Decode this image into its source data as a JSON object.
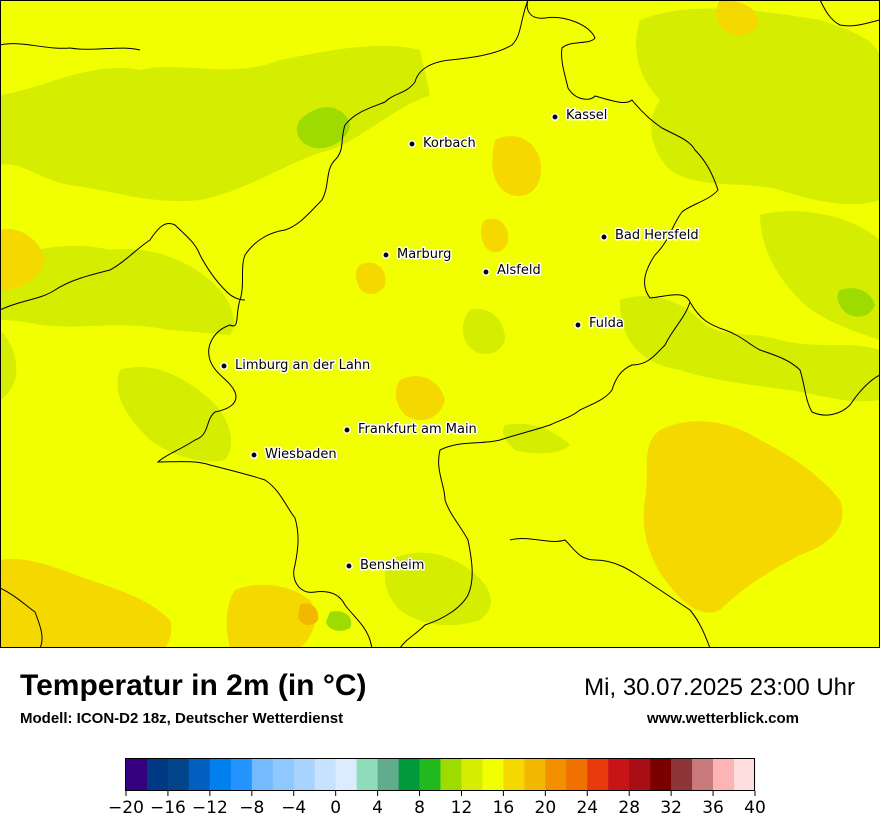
{
  "header": {
    "title": "Temperatur in 2m (in °C)",
    "model": "Modell: ICON-D2 18z, Deutscher Wetterdienst",
    "datetime": "Mi, 30.07.2025 23:00 Uhr",
    "website": "www.wetterblick.com"
  },
  "map": {
    "background_color": "#f2ff00",
    "cities": [
      {
        "name": "Kassel"
      },
      {
        "name": "Korbach"
      },
      {
        "name": "Bad Hersfeld"
      },
      {
        "name": "Marburg"
      },
      {
        "name": "Alsfeld"
      },
      {
        "name": "Fulda"
      },
      {
        "name": "Limburg an der Lahn"
      },
      {
        "name": "Frankfurt am Main"
      },
      {
        "name": "Wiesbaden"
      },
      {
        "name": "Bensheim"
      }
    ]
  },
  "legend": {
    "min": -20,
    "max": 40,
    "step": 2,
    "tick_labels": [
      "−20",
      "−16",
      "−12",
      "−8",
      "−4",
      "0",
      "4",
      "8",
      "12",
      "16",
      "20",
      "24",
      "28",
      "32",
      "36",
      "40"
    ],
    "colors": [
      "#35007f",
      "#003a87",
      "#00458a",
      "#005fbf",
      "#007fef",
      "#2494ff",
      "#74baff",
      "#8fc7ff",
      "#a9d3ff",
      "#c6e2ff",
      "#dcecff",
      "#8fdcba",
      "#62ab8c",
      "#009a3d",
      "#22b91f",
      "#9edb00",
      "#d4ed00",
      "#f2ff00",
      "#f4d800",
      "#f2b800",
      "#f29000",
      "#f07000",
      "#e83a0c",
      "#c71417",
      "#a90e14",
      "#7a0000",
      "#8e3538",
      "#c87a7c",
      "#fcb4b4",
      "#ffdede"
    ]
  }
}
